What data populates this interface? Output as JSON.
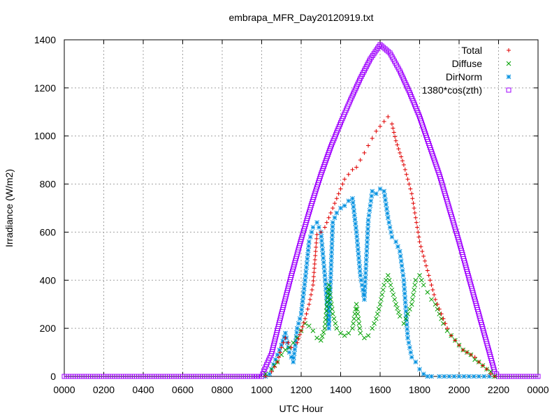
{
  "chart_data": {
    "type": "scatter",
    "title": "embrapa_MFR_Day20120919.txt",
    "xlabel": "UTC Hour",
    "ylabel": "Irradiance (W/m2)",
    "xlim": [
      0,
      2400
    ],
    "ylim": [
      0,
      1400
    ],
    "x_ticks": [
      "0000",
      "0200",
      "0400",
      "0600",
      "0800",
      "1000",
      "1200",
      "1400",
      "1600",
      "1800",
      "2000",
      "2200",
      "0000"
    ],
    "y_ticks": [
      "0",
      "200",
      "400",
      "600",
      "800",
      "1000",
      "1200",
      "1400"
    ],
    "grid": true,
    "legend_position": "top-right",
    "series": [
      {
        "name": "Total",
        "marker": "plus",
        "color": "#e00000",
        "points": [
          [
            1020,
            0
          ],
          [
            1050,
            20
          ],
          [
            1080,
            60
          ],
          [
            1100,
            120
          ],
          [
            1120,
            160
          ],
          [
            1150,
            120
          ],
          [
            1180,
            140
          ],
          [
            1200,
            190
          ],
          [
            1220,
            240
          ],
          [
            1240,
            300
          ],
          [
            1260,
            380
          ],
          [
            1280,
            590
          ],
          [
            1300,
            600
          ],
          [
            1320,
            620
          ],
          [
            1340,
            660
          ],
          [
            1360,
            700
          ],
          [
            1380,
            740
          ],
          [
            1400,
            780
          ],
          [
            1420,
            820
          ],
          [
            1440,
            840
          ],
          [
            1460,
            860
          ],
          [
            1480,
            870
          ],
          [
            1500,
            900
          ],
          [
            1520,
            930
          ],
          [
            1540,
            960
          ],
          [
            1560,
            990
          ],
          [
            1580,
            1020
          ],
          [
            1600,
            1040
          ],
          [
            1620,
            1060
          ],
          [
            1640,
            1080
          ],
          [
            1660,
            1050
          ],
          [
            1680,
            980
          ],
          [
            1700,
            930
          ],
          [
            1720,
            880
          ],
          [
            1740,
            820
          ],
          [
            1760,
            760
          ],
          [
            1780,
            660
          ],
          [
            1800,
            560
          ],
          [
            1820,
            500
          ],
          [
            1840,
            440
          ],
          [
            1860,
            380
          ],
          [
            1880,
            320
          ],
          [
            1900,
            280
          ],
          [
            1920,
            240
          ],
          [
            1940,
            200
          ],
          [
            1960,
            170
          ],
          [
            1980,
            150
          ],
          [
            2000,
            130
          ],
          [
            2020,
            110
          ],
          [
            2040,
            100
          ],
          [
            2060,
            90
          ],
          [
            2080,
            80
          ],
          [
            2100,
            60
          ],
          [
            2120,
            45
          ],
          [
            2140,
            30
          ],
          [
            2160,
            10
          ],
          [
            2180,
            0
          ]
        ]
      },
      {
        "name": "Diffuse",
        "marker": "cross",
        "color": "#00a000",
        "points": [
          [
            1020,
            10
          ],
          [
            1050,
            30
          ],
          [
            1080,
            60
          ],
          [
            1100,
            90
          ],
          [
            1120,
            110
          ],
          [
            1140,
            120
          ],
          [
            1160,
            140
          ],
          [
            1180,
            160
          ],
          [
            1200,
            190
          ],
          [
            1220,
            220
          ],
          [
            1240,
            210
          ],
          [
            1260,
            190
          ],
          [
            1280,
            160
          ],
          [
            1300,
            150
          ],
          [
            1320,
            200
          ],
          [
            1340,
            380
          ],
          [
            1360,
            260
          ],
          [
            1380,
            200
          ],
          [
            1400,
            180
          ],
          [
            1420,
            170
          ],
          [
            1440,
            180
          ],
          [
            1460,
            200
          ],
          [
            1480,
            300
          ],
          [
            1500,
            180
          ],
          [
            1520,
            160
          ],
          [
            1540,
            170
          ],
          [
            1560,
            200
          ],
          [
            1580,
            240
          ],
          [
            1600,
            300
          ],
          [
            1620,
            380
          ],
          [
            1640,
            420
          ],
          [
            1660,
            360
          ],
          [
            1680,
            300
          ],
          [
            1700,
            250
          ],
          [
            1720,
            220
          ],
          [
            1740,
            260
          ],
          [
            1760,
            300
          ],
          [
            1780,
            400
          ],
          [
            1800,
            420
          ],
          [
            1820,
            380
          ],
          [
            1840,
            350
          ],
          [
            1860,
            320
          ],
          [
            1880,
            300
          ],
          [
            1900,
            260
          ],
          [
            1920,
            220
          ],
          [
            1940,
            190
          ],
          [
            1960,
            170
          ],
          [
            1980,
            150
          ],
          [
            2000,
            130
          ],
          [
            2020,
            110
          ],
          [
            2040,
            100
          ],
          [
            2060,
            90
          ],
          [
            2080,
            70
          ],
          [
            2100,
            60
          ],
          [
            2120,
            45
          ],
          [
            2140,
            30
          ],
          [
            2160,
            20
          ],
          [
            2180,
            0
          ]
        ]
      },
      {
        "name": "DirNorm",
        "marker": "star",
        "color": "#0090e0",
        "points": [
          [
            1020,
            0
          ],
          [
            1040,
            10
          ],
          [
            1060,
            50
          ],
          [
            1080,
            90
          ],
          [
            1100,
            130
          ],
          [
            1120,
            180
          ],
          [
            1140,
            100
          ],
          [
            1160,
            60
          ],
          [
            1180,
            200
          ],
          [
            1200,
            260
          ],
          [
            1220,
            400
          ],
          [
            1240,
            560
          ],
          [
            1260,
            620
          ],
          [
            1280,
            640
          ],
          [
            1300,
            600
          ],
          [
            1320,
            420
          ],
          [
            1340,
            200
          ],
          [
            1360,
            640
          ],
          [
            1380,
            680
          ],
          [
            1400,
            700
          ],
          [
            1420,
            710
          ],
          [
            1440,
            730
          ],
          [
            1460,
            740
          ],
          [
            1480,
            600
          ],
          [
            1500,
            420
          ],
          [
            1520,
            320
          ],
          [
            1540,
            650
          ],
          [
            1560,
            770
          ],
          [
            1580,
            760
          ],
          [
            1600,
            780
          ],
          [
            1620,
            770
          ],
          [
            1640,
            660
          ],
          [
            1660,
            580
          ],
          [
            1680,
            560
          ],
          [
            1700,
            520
          ],
          [
            1720,
            400
          ],
          [
            1740,
            160
          ],
          [
            1760,
            80
          ],
          [
            1780,
            60
          ],
          [
            1800,
            30
          ],
          [
            1820,
            10
          ],
          [
            1840,
            0
          ],
          [
            1860,
            0
          ],
          [
            1900,
            0
          ],
          [
            2000,
            0
          ],
          [
            2100,
            0
          ],
          [
            2180,
            0
          ]
        ]
      },
      {
        "name": "1380*cos(zth)",
        "marker": "square",
        "color": "#a000ff",
        "points": [
          [
            0,
            0
          ],
          [
            200,
            0
          ],
          [
            400,
            0
          ],
          [
            600,
            0
          ],
          [
            800,
            0
          ],
          [
            950,
            0
          ],
          [
            1000,
            0
          ],
          [
            1020,
            40
          ],
          [
            1050,
            95
          ],
          [
            1100,
            260
          ],
          [
            1150,
            420
          ],
          [
            1200,
            570
          ],
          [
            1250,
            710
          ],
          [
            1300,
            840
          ],
          [
            1350,
            955
          ],
          [
            1400,
            1055
          ],
          [
            1450,
            1150
          ],
          [
            1500,
            1240
          ],
          [
            1550,
            1320
          ],
          [
            1600,
            1380
          ],
          [
            1650,
            1345
          ],
          [
            1700,
            1270
          ],
          [
            1750,
            1180
          ],
          [
            1800,
            1080
          ],
          [
            1850,
            960
          ],
          [
            1900,
            840
          ],
          [
            1950,
            700
          ],
          [
            2000,
            560
          ],
          [
            2050,
            410
          ],
          [
            2100,
            260
          ],
          [
            2150,
            110
          ],
          [
            2180,
            20
          ],
          [
            2200,
            0
          ],
          [
            2300,
            0
          ],
          [
            2400,
            0
          ]
        ]
      }
    ]
  }
}
